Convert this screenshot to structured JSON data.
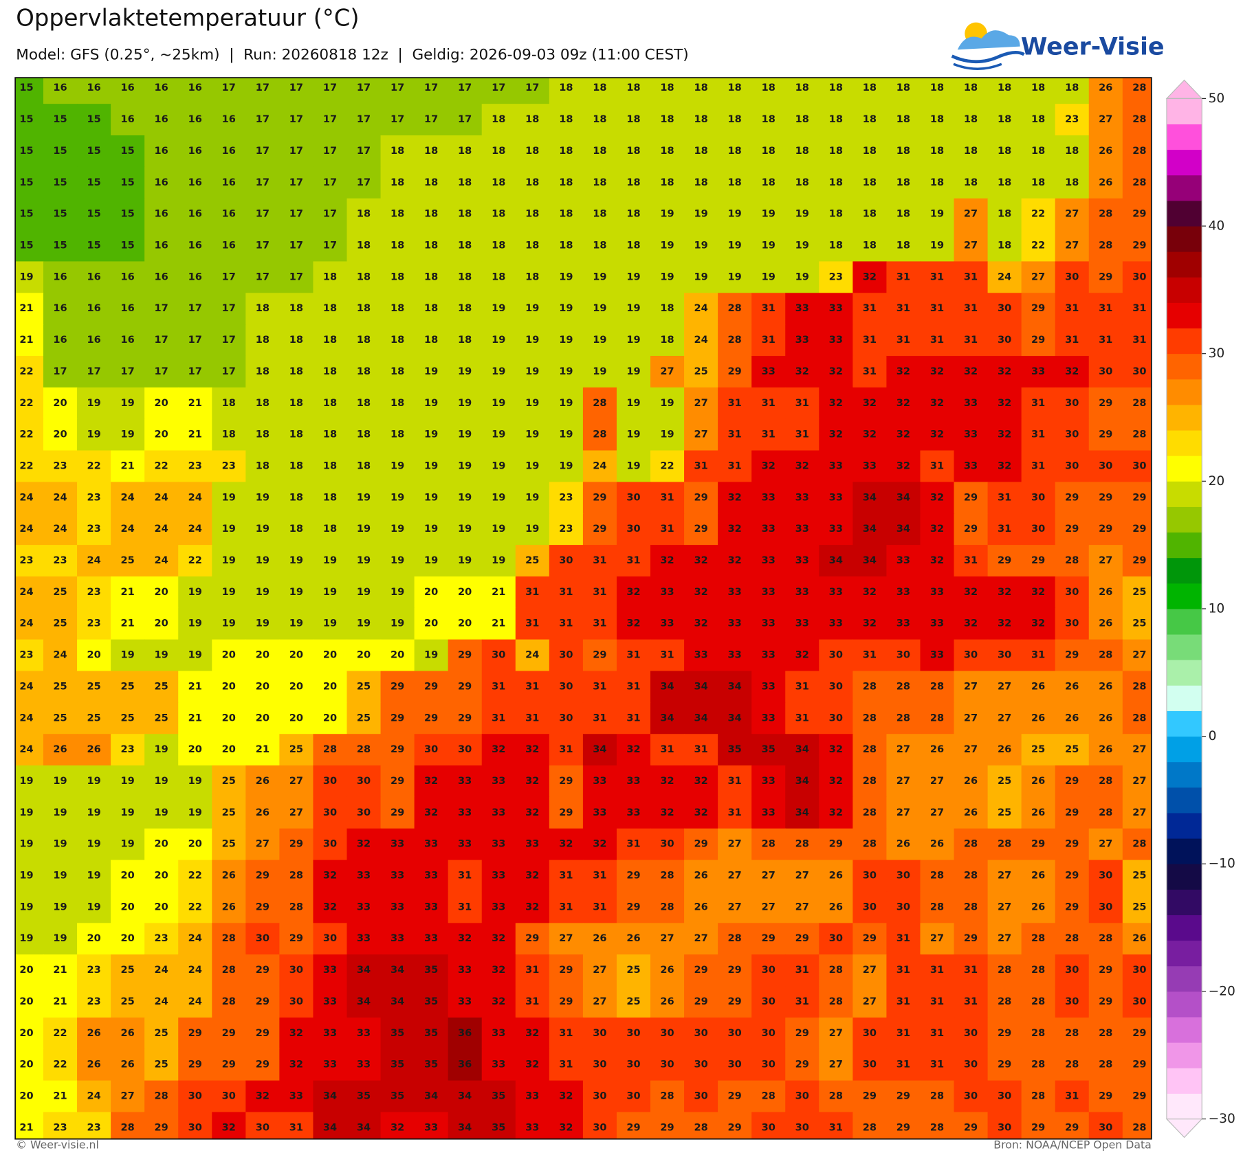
{
  "header": {
    "title": "Oppervlaktetemperatuur (°C)",
    "subtitle": "Model: GFS (0.25°, ~25km)  |  Run: 20260818 12z  |  Geldig: 2026-09-03 09z (11:00 CEST)",
    "logo": "Weer-Visie"
  },
  "map": {
    "grid": [
      [
        15,
        16,
        16,
        16,
        16,
        16,
        17,
        17,
        17,
        17,
        17,
        17,
        17,
        17,
        17,
        17,
        18,
        18,
        18,
        18,
        18,
        18,
        18,
        18,
        18,
        18,
        18,
        18,
        18,
        18,
        18,
        18,
        26,
        28
      ],
      [
        15,
        15,
        15,
        16,
        16,
        16,
        16,
        17,
        17,
        17,
        17,
        17,
        17,
        17,
        18,
        18,
        18,
        18,
        18,
        18,
        18,
        18,
        18,
        18,
        18,
        18,
        18,
        18,
        18,
        18,
        18,
        23,
        27,
        28
      ],
      [
        15,
        15,
        15,
        15,
        16,
        16,
        16,
        17,
        17,
        17,
        17,
        18,
        18,
        18,
        18,
        18,
        18,
        18,
        18,
        18,
        18,
        18,
        18,
        18,
        18,
        18,
        18,
        18,
        18,
        18,
        18,
        18,
        26,
        28
      ],
      [
        15,
        15,
        15,
        15,
        16,
        16,
        16,
        17,
        17,
        17,
        17,
        18,
        18,
        18,
        18,
        18,
        18,
        18,
        18,
        18,
        18,
        18,
        18,
        18,
        18,
        18,
        18,
        18,
        18,
        18,
        18,
        18,
        26,
        28
      ],
      [
        15,
        15,
        15,
        15,
        16,
        16,
        16,
        17,
        17,
        17,
        18,
        18,
        18,
        18,
        18,
        18,
        18,
        18,
        18,
        19,
        19,
        19,
        19,
        19,
        18,
        18,
        18,
        19,
        27,
        18,
        22,
        27,
        28,
        29
      ],
      [
        15,
        15,
        15,
        15,
        16,
        16,
        16,
        17,
        17,
        17,
        18,
        18,
        18,
        18,
        18,
        18,
        18,
        18,
        18,
        19,
        19,
        19,
        19,
        19,
        18,
        18,
        18,
        19,
        27,
        18,
        22,
        27,
        28,
        29
      ],
      [
        19,
        16,
        16,
        16,
        16,
        16,
        17,
        17,
        17,
        18,
        18,
        18,
        18,
        18,
        18,
        18,
        19,
        19,
        19,
        19,
        19,
        19,
        19,
        19,
        23,
        32,
        31,
        31,
        31,
        24,
        27,
        30,
        29,
        30
      ],
      [
        21,
        16,
        16,
        16,
        17,
        17,
        17,
        18,
        18,
        18,
        18,
        18,
        18,
        18,
        19,
        19,
        19,
        19,
        19,
        18,
        24,
        28,
        31,
        33,
        33,
        31,
        31,
        31,
        31,
        30,
        29,
        31,
        31,
        31
      ],
      [
        21,
        16,
        16,
        16,
        17,
        17,
        17,
        18,
        18,
        18,
        18,
        18,
        18,
        18,
        19,
        19,
        19,
        19,
        19,
        18,
        24,
        28,
        31,
        33,
        33,
        31,
        31,
        31,
        31,
        30,
        29,
        31,
        31,
        31
      ],
      [
        22,
        17,
        17,
        17,
        17,
        17,
        17,
        18,
        18,
        18,
        18,
        18,
        19,
        19,
        19,
        19,
        19,
        19,
        19,
        27,
        25,
        29,
        33,
        32,
        32,
        31,
        32,
        32,
        32,
        32,
        33,
        32,
        30,
        30
      ],
      [
        22,
        20,
        19,
        19,
        20,
        21,
        18,
        18,
        18,
        18,
        18,
        18,
        19,
        19,
        19,
        19,
        19,
        28,
        19,
        19,
        27,
        31,
        31,
        31,
        32,
        32,
        32,
        32,
        33,
        32,
        31,
        30,
        29,
        28
      ],
      [
        22,
        20,
        19,
        19,
        20,
        21,
        18,
        18,
        18,
        18,
        18,
        18,
        19,
        19,
        19,
        19,
        19,
        28,
        19,
        19,
        27,
        31,
        31,
        31,
        32,
        32,
        32,
        32,
        33,
        32,
        31,
        30,
        29,
        28
      ],
      [
        22,
        23,
        22,
        21,
        22,
        23,
        23,
        18,
        18,
        18,
        18,
        19,
        19,
        19,
        19,
        19,
        19,
        24,
        19,
        22,
        31,
        31,
        32,
        32,
        33,
        33,
        32,
        31,
        33,
        32,
        31,
        30,
        30,
        30
      ],
      [
        24,
        24,
        23,
        24,
        24,
        24,
        19,
        19,
        18,
        18,
        19,
        19,
        19,
        19,
        19,
        19,
        23,
        29,
        30,
        31,
        29,
        32,
        33,
        33,
        33,
        34,
        34,
        32,
        29,
        31,
        30,
        29,
        29,
        29
      ],
      [
        24,
        24,
        23,
        24,
        24,
        24,
        19,
        19,
        18,
        18,
        19,
        19,
        19,
        19,
        19,
        19,
        23,
        29,
        30,
        31,
        29,
        32,
        33,
        33,
        33,
        34,
        34,
        32,
        29,
        31,
        30,
        29,
        29,
        29
      ],
      [
        23,
        23,
        24,
        25,
        24,
        22,
        19,
        19,
        19,
        19,
        19,
        19,
        19,
        19,
        19,
        25,
        30,
        31,
        31,
        32,
        32,
        32,
        33,
        33,
        34,
        34,
        33,
        32,
        31,
        29,
        29,
        28,
        27,
        29
      ],
      [
        24,
        25,
        23,
        21,
        20,
        19,
        19,
        19,
        19,
        19,
        19,
        19,
        20,
        20,
        21,
        31,
        31,
        31,
        32,
        33,
        32,
        33,
        33,
        33,
        33,
        32,
        33,
        33,
        32,
        32,
        32,
        30,
        26,
        25
      ],
      [
        24,
        25,
        23,
        21,
        20,
        19,
        19,
        19,
        19,
        19,
        19,
        19,
        20,
        20,
        21,
        31,
        31,
        31,
        32,
        33,
        32,
        33,
        33,
        33,
        33,
        32,
        33,
        33,
        32,
        32,
        32,
        30,
        26,
        25
      ],
      [
        23,
        24,
        20,
        19,
        19,
        19,
        20,
        20,
        20,
        20,
        20,
        20,
        19,
        29,
        30,
        24,
        30,
        29,
        31,
        31,
        33,
        33,
        33,
        32,
        30,
        31,
        30,
        33,
        30,
        30,
        31,
        29,
        28,
        27
      ],
      [
        24,
        25,
        25,
        25,
        25,
        21,
        20,
        20,
        20,
        20,
        25,
        29,
        29,
        29,
        31,
        31,
        30,
        31,
        31,
        34,
        34,
        34,
        33,
        31,
        30,
        28,
        28,
        28,
        27,
        27,
        26,
        26,
        26,
        28
      ],
      [
        24,
        25,
        25,
        25,
        25,
        21,
        20,
        20,
        20,
        20,
        25,
        29,
        29,
        29,
        31,
        31,
        30,
        31,
        31,
        34,
        34,
        34,
        33,
        31,
        30,
        28,
        28,
        28,
        27,
        27,
        26,
        26,
        26,
        28
      ],
      [
        24,
        26,
        26,
        23,
        19,
        20,
        20,
        21,
        25,
        28,
        28,
        29,
        30,
        30,
        32,
        32,
        31,
        34,
        32,
        31,
        31,
        35,
        35,
        34,
        32,
        28,
        27,
        26,
        27,
        26,
        25,
        25,
        26,
        27
      ],
      [
        19,
        19,
        19,
        19,
        19,
        19,
        25,
        26,
        27,
        30,
        30,
        29,
        32,
        33,
        33,
        32,
        29,
        33,
        33,
        32,
        32,
        31,
        33,
        34,
        32,
        28,
        27,
        27,
        26,
        25,
        26,
        29,
        28,
        27
      ],
      [
        19,
        19,
        19,
        19,
        19,
        19,
        25,
        26,
        27,
        30,
        30,
        29,
        32,
        33,
        33,
        32,
        29,
        33,
        33,
        32,
        32,
        31,
        33,
        34,
        32,
        28,
        27,
        27,
        26,
        25,
        26,
        29,
        28,
        27
      ],
      [
        19,
        19,
        19,
        19,
        20,
        20,
        25,
        27,
        29,
        30,
        32,
        33,
        33,
        33,
        33,
        33,
        32,
        32,
        31,
        30,
        29,
        27,
        28,
        28,
        29,
        28,
        26,
        26,
        28,
        28,
        29,
        29,
        27,
        28
      ],
      [
        19,
        19,
        19,
        20,
        20,
        22,
        26,
        29,
        28,
        32,
        33,
        33,
        33,
        31,
        33,
        32,
        31,
        31,
        29,
        28,
        26,
        27,
        27,
        27,
        26,
        30,
        30,
        28,
        28,
        27,
        26,
        29,
        30,
        25
      ],
      [
        19,
        19,
        19,
        20,
        20,
        22,
        26,
        29,
        28,
        32,
        33,
        33,
        33,
        31,
        33,
        32,
        31,
        31,
        29,
        28,
        26,
        27,
        27,
        27,
        26,
        30,
        30,
        28,
        28,
        27,
        26,
        29,
        30,
        25
      ],
      [
        19,
        19,
        20,
        20,
        23,
        24,
        28,
        30,
        29,
        30,
        33,
        33,
        33,
        32,
        32,
        29,
        27,
        26,
        26,
        27,
        27,
        28,
        29,
        29,
        30,
        29,
        31,
        27,
        29,
        27,
        28,
        28,
        28,
        26
      ],
      [
        20,
        21,
        23,
        25,
        24,
        24,
        28,
        29,
        30,
        33,
        34,
        34,
        35,
        33,
        32,
        31,
        29,
        27,
        25,
        26,
        29,
        29,
        30,
        31,
        28,
        27,
        31,
        31,
        31,
        28,
        28,
        30,
        29,
        30
      ],
      [
        20,
        21,
        23,
        25,
        24,
        24,
        28,
        29,
        30,
        33,
        34,
        34,
        35,
        33,
        32,
        31,
        29,
        27,
        25,
        26,
        29,
        29,
        30,
        31,
        28,
        27,
        31,
        31,
        31,
        28,
        28,
        30,
        29,
        30
      ],
      [
        20,
        22,
        26,
        26,
        25,
        29,
        29,
        29,
        32,
        33,
        33,
        35,
        35,
        36,
        33,
        32,
        31,
        30,
        30,
        30,
        30,
        30,
        30,
        29,
        27,
        30,
        31,
        31,
        30,
        29,
        28,
        28,
        28,
        29
      ],
      [
        20,
        22,
        26,
        26,
        25,
        29,
        29,
        29,
        32,
        33,
        33,
        35,
        35,
        36,
        33,
        32,
        31,
        30,
        30,
        30,
        30,
        30,
        30,
        29,
        27,
        30,
        31,
        31,
        30,
        29,
        28,
        28,
        28,
        29
      ],
      [
        20,
        21,
        24,
        27,
        28,
        30,
        30,
        32,
        33,
        34,
        35,
        35,
        34,
        34,
        35,
        33,
        32,
        30,
        30,
        28,
        30,
        29,
        28,
        30,
        28,
        29,
        29,
        28,
        30,
        30,
        28,
        31,
        29,
        29
      ],
      [
        21,
        23,
        23,
        28,
        29,
        30,
        32,
        30,
        31,
        34,
        34,
        32,
        33,
        34,
        35,
        33,
        32,
        30,
        29,
        29,
        28,
        29,
        30,
        30,
        31,
        28,
        29,
        28,
        29,
        30,
        29,
        29,
        30,
        28
      ]
    ]
  },
  "colorbar": {
    "lim": [
      -30,
      50
    ],
    "ticks": [
      {
        "value": -30,
        "label": "−30"
      },
      {
        "value": -20,
        "label": "−20"
      },
      {
        "value": -10,
        "label": "−10"
      },
      0,
      10,
      20,
      30,
      40,
      50
    ],
    "colors": [
      "#ffe8fb",
      "#ffc4f5",
      "#f096e8",
      "#d870dc",
      "#b450c8",
      "#963cb4",
      "#781ea0",
      "#5a0a8c",
      "#320a64",
      "#140a46",
      "#00125a",
      "#002896",
      "#0050aa",
      "#0078c8",
      "#00a0e6",
      "#32c8ff",
      "#d2fff0",
      "#aaf0aa",
      "#78dc78",
      "#46c846",
      "#00b400",
      "#00960a",
      "#50b400",
      "#96c800",
      "#c8dc00",
      "#ffff00",
      "#ffdc00",
      "#ffb400",
      "#ff8c00",
      "#ff6400",
      "#ff3c00",
      "#e60000",
      "#c80000",
      "#a00000",
      "#78000a",
      "#500032",
      "#960078",
      "#d200c8",
      "#ff50dc",
      "#ffb4e6"
    ]
  },
  "footer": {
    "left": "© Weer-visie.nl",
    "right": "Bron: NOAA/NCEP Open Data"
  }
}
